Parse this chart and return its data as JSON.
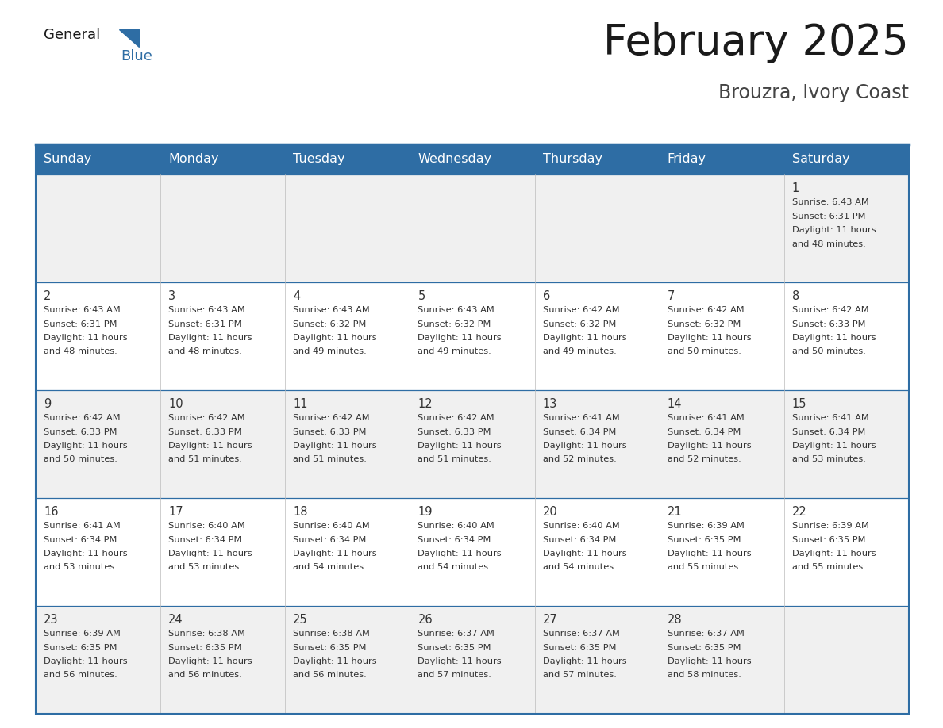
{
  "title": "February 2025",
  "subtitle": "Brouzra, Ivory Coast",
  "days_of_week": [
    "Sunday",
    "Monday",
    "Tuesday",
    "Wednesday",
    "Thursday",
    "Friday",
    "Saturday"
  ],
  "header_bg": "#2E6DA4",
  "header_text_color": "#FFFFFF",
  "border_color": "#2E6DA4",
  "day_number_color": "#333333",
  "cell_text_color": "#333333",
  "row_bg_colors": [
    "#F0F0F0",
    "#FFFFFF",
    "#F0F0F0",
    "#FFFFFF",
    "#F0F0F0"
  ],
  "calendar_data": [
    [
      null,
      null,
      null,
      null,
      null,
      null,
      {
        "day": 1,
        "sunrise": "6:43 AM",
        "sunset": "6:31 PM",
        "daylight": "11 hours and 48 minutes."
      }
    ],
    [
      {
        "day": 2,
        "sunrise": "6:43 AM",
        "sunset": "6:31 PM",
        "daylight": "11 hours and 48 minutes."
      },
      {
        "day": 3,
        "sunrise": "6:43 AM",
        "sunset": "6:31 PM",
        "daylight": "11 hours and 48 minutes."
      },
      {
        "day": 4,
        "sunrise": "6:43 AM",
        "sunset": "6:32 PM",
        "daylight": "11 hours and 49 minutes."
      },
      {
        "day": 5,
        "sunrise": "6:43 AM",
        "sunset": "6:32 PM",
        "daylight": "11 hours and 49 minutes."
      },
      {
        "day": 6,
        "sunrise": "6:42 AM",
        "sunset": "6:32 PM",
        "daylight": "11 hours and 49 minutes."
      },
      {
        "day": 7,
        "sunrise": "6:42 AM",
        "sunset": "6:32 PM",
        "daylight": "11 hours and 50 minutes."
      },
      {
        "day": 8,
        "sunrise": "6:42 AM",
        "sunset": "6:33 PM",
        "daylight": "11 hours and 50 minutes."
      }
    ],
    [
      {
        "day": 9,
        "sunrise": "6:42 AM",
        "sunset": "6:33 PM",
        "daylight": "11 hours and 50 minutes."
      },
      {
        "day": 10,
        "sunrise": "6:42 AM",
        "sunset": "6:33 PM",
        "daylight": "11 hours and 51 minutes."
      },
      {
        "day": 11,
        "sunrise": "6:42 AM",
        "sunset": "6:33 PM",
        "daylight": "11 hours and 51 minutes."
      },
      {
        "day": 12,
        "sunrise": "6:42 AM",
        "sunset": "6:33 PM",
        "daylight": "11 hours and 51 minutes."
      },
      {
        "day": 13,
        "sunrise": "6:41 AM",
        "sunset": "6:34 PM",
        "daylight": "11 hours and 52 minutes."
      },
      {
        "day": 14,
        "sunrise": "6:41 AM",
        "sunset": "6:34 PM",
        "daylight": "11 hours and 52 minutes."
      },
      {
        "day": 15,
        "sunrise": "6:41 AM",
        "sunset": "6:34 PM",
        "daylight": "11 hours and 53 minutes."
      }
    ],
    [
      {
        "day": 16,
        "sunrise": "6:41 AM",
        "sunset": "6:34 PM",
        "daylight": "11 hours and 53 minutes."
      },
      {
        "day": 17,
        "sunrise": "6:40 AM",
        "sunset": "6:34 PM",
        "daylight": "11 hours and 53 minutes."
      },
      {
        "day": 18,
        "sunrise": "6:40 AM",
        "sunset": "6:34 PM",
        "daylight": "11 hours and 54 minutes."
      },
      {
        "day": 19,
        "sunrise": "6:40 AM",
        "sunset": "6:34 PM",
        "daylight": "11 hours and 54 minutes."
      },
      {
        "day": 20,
        "sunrise": "6:40 AM",
        "sunset": "6:34 PM",
        "daylight": "11 hours and 54 minutes."
      },
      {
        "day": 21,
        "sunrise": "6:39 AM",
        "sunset": "6:35 PM",
        "daylight": "11 hours and 55 minutes."
      },
      {
        "day": 22,
        "sunrise": "6:39 AM",
        "sunset": "6:35 PM",
        "daylight": "11 hours and 55 minutes."
      }
    ],
    [
      {
        "day": 23,
        "sunrise": "6:39 AM",
        "sunset": "6:35 PM",
        "daylight": "11 hours and 56 minutes."
      },
      {
        "day": 24,
        "sunrise": "6:38 AM",
        "sunset": "6:35 PM",
        "daylight": "11 hours and 56 minutes."
      },
      {
        "day": 25,
        "sunrise": "6:38 AM",
        "sunset": "6:35 PM",
        "daylight": "11 hours and 56 minutes."
      },
      {
        "day": 26,
        "sunrise": "6:37 AM",
        "sunset": "6:35 PM",
        "daylight": "11 hours and 57 minutes."
      },
      {
        "day": 27,
        "sunrise": "6:37 AM",
        "sunset": "6:35 PM",
        "daylight": "11 hours and 57 minutes."
      },
      {
        "day": 28,
        "sunrise": "6:37 AM",
        "sunset": "6:35 PM",
        "daylight": "11 hours and 58 minutes."
      },
      null
    ]
  ],
  "title_fontsize": 38,
  "subtitle_fontsize": 17,
  "header_fontsize": 11.5,
  "day_num_fontsize": 10.5,
  "cell_text_fontsize": 8.2
}
